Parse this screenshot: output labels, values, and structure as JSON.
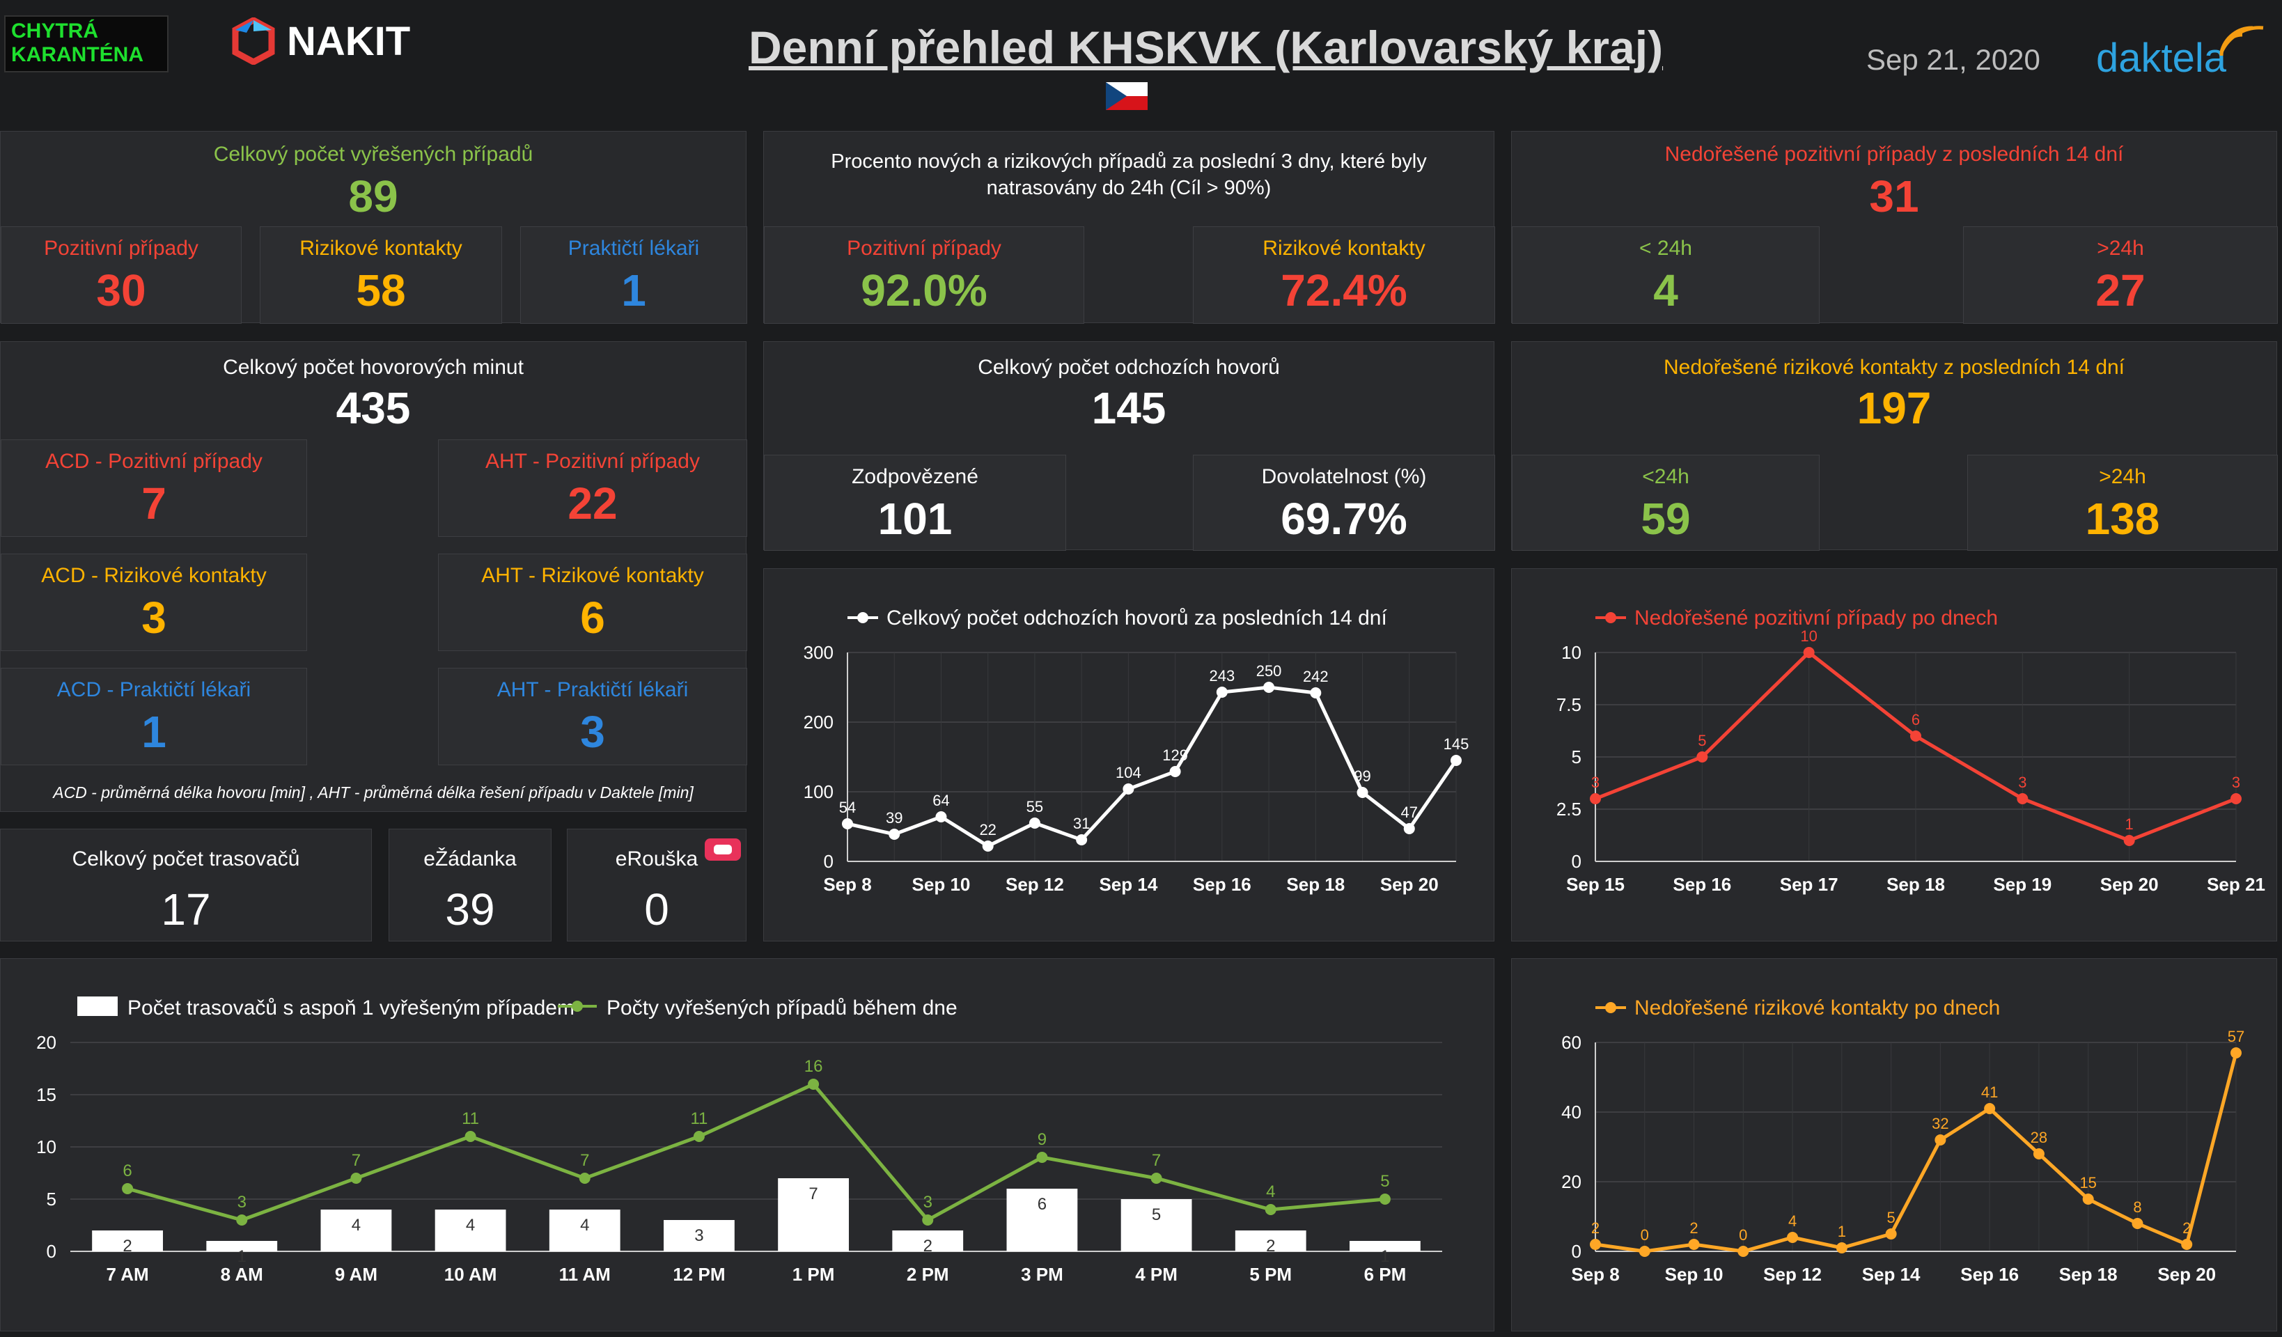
{
  "header": {
    "badge_line1": "CHYTRÁ",
    "badge_line2": "KARANTÉNA",
    "nakit": "NAKIT",
    "title": "Denní přehled KHSKVK (Karlovarský kraj)",
    "date": "Sep 21, 2020",
    "daktela": "daktela"
  },
  "solved": {
    "title": "Celkový počet vyřešených případů",
    "value": "89",
    "pos_label": "Pozitivní případy",
    "pos_value": "30",
    "risk_label": "Rizikové kontakty",
    "risk_value": "58",
    "gp_label": "Praktičtí lékaři",
    "gp_value": "1"
  },
  "traced": {
    "title": "Procento nových a rizikových případů za poslední 3 dny, které byly natrasovány do 24h (Cíl > 90%)",
    "pos_label": "Pozitivní případy",
    "pos_value": "92.0%",
    "risk_label": "Rizikové kontakty",
    "risk_value": "72.4%"
  },
  "unsolved_pos": {
    "title": "Nedořešené pozitivní případy z posledních 14 dní",
    "value": "31",
    "lt_label": "< 24h",
    "lt_value": "4",
    "gt_label": ">24h",
    "gt_value": "27"
  },
  "minutes": {
    "title": "Celkový počet hovorových minut",
    "value": "435",
    "acd_pos_label": "ACD - Pozitivní případy",
    "acd_pos_value": "7",
    "aht_pos_label": "AHT - Pozitivní případy",
    "aht_pos_value": "22",
    "acd_risk_label": "ACD - Rizikové kontakty",
    "acd_risk_value": "3",
    "aht_risk_label": "AHT - Rizikové kontakty",
    "aht_risk_value": "6",
    "acd_gp_label": "ACD - Praktičtí lékaři",
    "acd_gp_value": "1",
    "aht_gp_label": "AHT - Praktičtí lékaři",
    "aht_gp_value": "3",
    "note": "ACD - průměrná délka hovoru [min] , AHT - průměrná délka řešení případu v Daktele [min]"
  },
  "calls": {
    "title": "Celkový počet odchozích hovorů",
    "value": "145",
    "answered_label": "Zodpovězené",
    "answered_value": "101",
    "reach_label": "Dovolatelnost (%)",
    "reach_value": "69.7%"
  },
  "unsolved_risk": {
    "title": "Nedořešené rizikové kontakty z posledních 14 dní",
    "value": "197",
    "lt_label": "<24h",
    "lt_value": "59",
    "gt_label": ">24h",
    "gt_value": "138"
  },
  "tracers": {
    "title": "Celkový počet trasovačů",
    "value": "17",
    "ezadanka_label": "eŽádanka",
    "ezadanka_value": "39",
    "erouska_label": "eRouška",
    "erouska_value": "0"
  },
  "chart_data": [
    {
      "type": "line",
      "legend": "Celkový počet odchozích hovorů za posledních 14 dní",
      "x": [
        "Sep 8",
        "Sep 9",
        "Sep 10",
        "Sep 11",
        "Sep 12",
        "Sep 13",
        "Sep 14",
        "Sep 15",
        "Sep 16",
        "Sep 17",
        "Sep 18",
        "Sep 19",
        "Sep 20",
        "Sep 21"
      ],
      "x_ticks": [
        "Sep 8",
        "Sep 10",
        "Sep 12",
        "Sep 14",
        "Sep 16",
        "Sep 18",
        "Sep 20"
      ],
      "values": [
        54,
        39,
        64,
        22,
        55,
        31,
        104,
        129,
        243,
        250,
        242,
        99,
        47,
        145
      ],
      "y_ticks": [
        0,
        100,
        200,
        300
      ],
      "ylim": [
        0,
        300
      ],
      "color": "#ffffff"
    },
    {
      "type": "line",
      "legend": "Nedořešené pozitivní případy po dnech",
      "x": [
        "Sep 15",
        "Sep 16",
        "Sep 17",
        "Sep 18",
        "Sep 19",
        "Sep 20",
        "Sep 21"
      ],
      "x_ticks": [
        "Sep 15",
        "Sep 16",
        "Sep 17",
        "Sep 18",
        "Sep 19",
        "Sep 20",
        "Sep 21"
      ],
      "values": [
        3,
        5,
        10,
        6,
        3,
        1,
        3
      ],
      "y_ticks": [
        0,
        2.5,
        5,
        7.5,
        10
      ],
      "ylim": [
        0,
        10
      ],
      "color": "#f44336"
    },
    {
      "type": "bar+line",
      "bar_legend": "Počet trasovačů s aspoň 1 vyřešeným případem",
      "line_legend": "Počty vyřešených případů během dne",
      "categories": [
        "7 AM",
        "8 AM",
        "9 AM",
        "10 AM",
        "11 AM",
        "12 PM",
        "1 PM",
        "2 PM",
        "3 PM",
        "4 PM",
        "5 PM",
        "6 PM"
      ],
      "bar_values": [
        2,
        1,
        4,
        4,
        4,
        3,
        7,
        2,
        6,
        5,
        2,
        1
      ],
      "line_values": [
        6,
        3,
        7,
        11,
        7,
        11,
        16,
        3,
        9,
        7,
        4,
        5
      ],
      "y_ticks": [
        0,
        5,
        10,
        15,
        20
      ],
      "ylim": [
        0,
        20
      ],
      "bar_color": "#ffffff",
      "line_color": "#7cb342"
    },
    {
      "type": "line",
      "legend": "Nedořešené rizikové kontakty po dnech",
      "x": [
        "Sep 8",
        "Sep 9",
        "Sep 10",
        "Sep 11",
        "Sep 12",
        "Sep 13",
        "Sep 14",
        "Sep 15",
        "Sep 16",
        "Sep 17",
        "Sep 18",
        "Sep 19",
        "Sep 20",
        "Sep 21"
      ],
      "x_ticks": [
        "Sep 8",
        "Sep 10",
        "Sep 12",
        "Sep 14",
        "Sep 16",
        "Sep 18",
        "Sep 20"
      ],
      "values": [
        2,
        0,
        2,
        0,
        4,
        1,
        5,
        32,
        41,
        28,
        15,
        8,
        2,
        57
      ],
      "y_ticks": [
        0,
        20,
        40,
        60
      ],
      "ylim": [
        0,
        60
      ],
      "color": "#ffa726"
    }
  ]
}
